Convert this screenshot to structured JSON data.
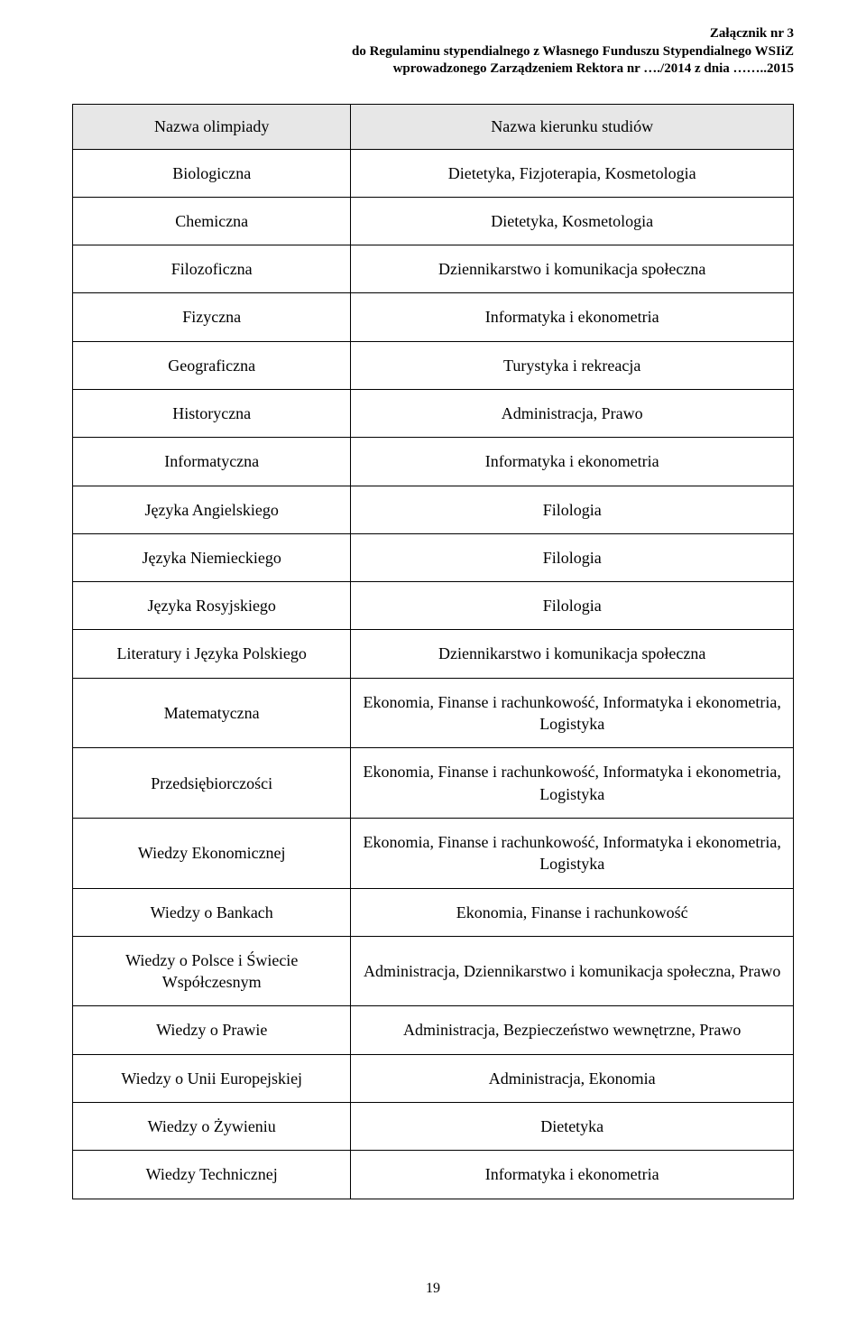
{
  "header": {
    "line1": "Załącznik nr 3",
    "line2": "do Regulaminu stypendialnego z Własnego Funduszu Stypendialnego WSIiZ",
    "line3": "wprowadzonego Zarządzeniem Rektora nr …./2014 z dnia ……..2015"
  },
  "table": {
    "columns": {
      "left": "Nazwa olimpiady",
      "right": "Nazwa kierunku studiów"
    },
    "rows": [
      {
        "olimpiad": "Biologiczna",
        "field": "Dietetyka, Fizjoterapia, Kosmetologia"
      },
      {
        "olimpiad": "Chemiczna",
        "field": "Dietetyka, Kosmetologia"
      },
      {
        "olimpiad": "Filozoficzna",
        "field": "Dziennikarstwo i komunikacja społeczna"
      },
      {
        "olimpiad": "Fizyczna",
        "field": "Informatyka i ekonometria"
      },
      {
        "olimpiad": "Geograficzna",
        "field": "Turystyka i rekreacja"
      },
      {
        "olimpiad": "Historyczna",
        "field": "Administracja, Prawo"
      },
      {
        "olimpiad": "Informatyczna",
        "field": "Informatyka i ekonometria"
      },
      {
        "olimpiad": "Języka Angielskiego",
        "field": "Filologia"
      },
      {
        "olimpiad": "Języka Niemieckiego",
        "field": "Filologia"
      },
      {
        "olimpiad": "Języka Rosyjskiego",
        "field": "Filologia"
      },
      {
        "olimpiad": "Literatury i Języka Polskiego",
        "field": "Dziennikarstwo i komunikacja społeczna"
      },
      {
        "olimpiad": "Matematyczna",
        "field": "Ekonomia, Finanse i rachunkowość, Informatyka i ekonometria, Logistyka"
      },
      {
        "olimpiad": "Przedsiębiorczości",
        "field": "Ekonomia, Finanse i rachunkowość, Informatyka i ekonometria, Logistyka"
      },
      {
        "olimpiad": "Wiedzy Ekonomicznej",
        "field": "Ekonomia, Finanse i rachunkowość, Informatyka i ekonometria, Logistyka"
      },
      {
        "olimpiad": "Wiedzy o Bankach",
        "field": "Ekonomia, Finanse i rachunkowość"
      },
      {
        "olimpiad": "Wiedzy o Polsce i Świecie Współczesnym",
        "field": "Administracja, Dziennikarstwo i komunikacja społeczna, Prawo"
      },
      {
        "olimpiad": "Wiedzy o Prawie",
        "field": "Administracja, Bezpieczeństwo wewnętrzne, Prawo"
      },
      {
        "olimpiad": "Wiedzy o Unii Europejskiej",
        "field": "Administracja, Ekonomia"
      },
      {
        "olimpiad": "Wiedzy o Żywieniu",
        "field": "Dietetyka"
      },
      {
        "olimpiad": "Wiedzy Technicznej",
        "field": "Informatyka i ekonometria"
      }
    ]
  },
  "page_number": "19"
}
